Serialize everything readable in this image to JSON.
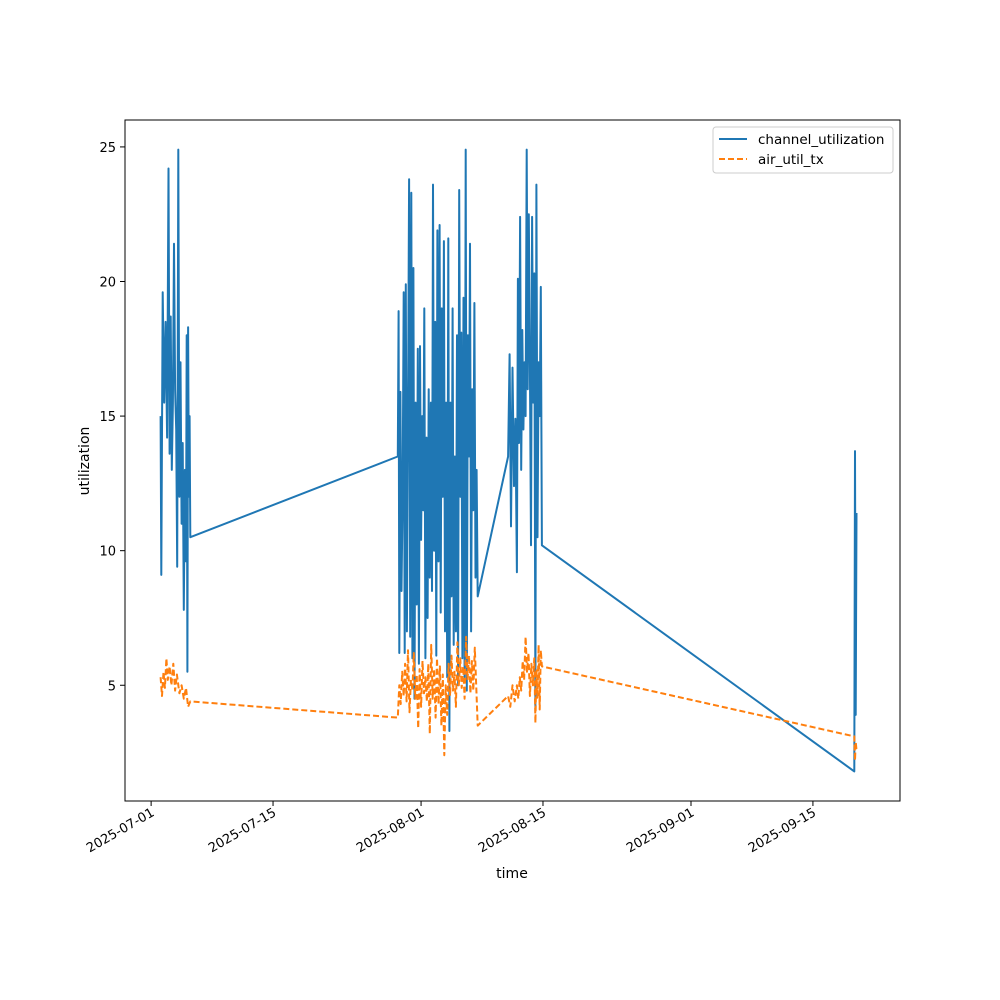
{
  "chart_data": {
    "type": "line",
    "title": "",
    "xlabel": "time",
    "ylabel": "utilization",
    "x_is_date": true,
    "xlim": [
      "2025-06-28",
      "2025-09-25"
    ],
    "ylim": [
      0.7,
      26.0
    ],
    "xticks": [
      "2025-07-01",
      "2025-07-15",
      "2025-08-01",
      "2025-08-15",
      "2025-09-01",
      "2025-09-15"
    ],
    "yticks": [
      5,
      10,
      15,
      20,
      25
    ],
    "grid": false,
    "legend_position": "top-right",
    "series": [
      {
        "name": "channel_utilization",
        "color": "#1f77b4",
        "style": "solid",
        "points": [
          [
            "2025-07-02 02:00",
            15.0
          ],
          [
            "2025-07-02 04:00",
            9.1
          ],
          [
            "2025-07-02 08:00",
            19.6
          ],
          [
            "2025-07-02 12:00",
            15.5
          ],
          [
            "2025-07-02 16:00",
            18.5
          ],
          [
            "2025-07-02 20:00",
            14.2
          ],
          [
            "2025-07-03 00:00",
            24.2
          ],
          [
            "2025-07-03 03:00",
            13.6
          ],
          [
            "2025-07-03 06:00",
            18.7
          ],
          [
            "2025-07-03 09:00",
            13.0
          ],
          [
            "2025-07-03 12:00",
            15.5
          ],
          [
            "2025-07-03 15:00",
            21.4
          ],
          [
            "2025-07-03 18:00",
            16.0
          ],
          [
            "2025-07-03 21:00",
            14.5
          ],
          [
            "2025-07-04 00:00",
            9.4
          ],
          [
            "2025-07-04 03:00",
            24.9
          ],
          [
            "2025-07-04 06:00",
            12.0
          ],
          [
            "2025-07-04 09:00",
            17.0
          ],
          [
            "2025-07-04 12:00",
            11.0
          ],
          [
            "2025-07-04 15:00",
            14.0
          ],
          [
            "2025-07-04 18:00",
            7.8
          ],
          [
            "2025-07-04 21:00",
            13.0
          ],
          [
            "2025-07-05 00:00",
            9.6
          ],
          [
            "2025-07-05 02:00",
            18.0
          ],
          [
            "2025-07-05 04:00",
            5.5
          ],
          [
            "2025-07-05 06:00",
            18.3
          ],
          [
            "2025-07-05 08:00",
            12.0
          ],
          [
            "2025-07-05 10:00",
            15.0
          ],
          [
            "2025-07-05 12:00",
            10.5
          ],
          [
            "2025-07-29 08:00",
            13.5
          ],
          [
            "2025-07-29 10:00",
            18.9
          ],
          [
            "2025-07-29 12:00",
            6.2
          ],
          [
            "2025-07-29 15:00",
            15.9
          ],
          [
            "2025-07-29 18:00",
            8.5
          ],
          [
            "2025-07-29 21:00",
            12.0
          ],
          [
            "2025-07-30 00:00",
            19.6
          ],
          [
            "2025-07-30 03:00",
            6.2
          ],
          [
            "2025-07-30 06:00",
            19.9
          ],
          [
            "2025-07-30 09:00",
            7.0
          ],
          [
            "2025-07-30 12:00",
            15.0
          ],
          [
            "2025-07-30 15:00",
            23.8
          ],
          [
            "2025-07-30 18:00",
            6.8
          ],
          [
            "2025-07-30 21:00",
            23.3
          ],
          [
            "2025-07-31 00:00",
            6.0
          ],
          [
            "2025-07-31 03:00",
            20.5
          ],
          [
            "2025-07-31 06:00",
            4.5
          ],
          [
            "2025-07-31 09:00",
            15.5
          ],
          [
            "2025-07-31 12:00",
            8.0
          ],
          [
            "2025-07-31 15:00",
            17.5
          ],
          [
            "2025-07-31 18:00",
            5.8
          ],
          [
            "2025-07-31 21:00",
            17.6
          ],
          [
            "2025-08-01 00:00",
            10.4
          ],
          [
            "2025-08-01 03:00",
            15.0
          ],
          [
            "2025-08-01 06:00",
            11.5
          ],
          [
            "2025-08-01 09:00",
            19.0
          ],
          [
            "2025-08-01 12:00",
            6.0
          ],
          [
            "2025-08-01 15:00",
            14.2
          ],
          [
            "2025-08-01 18:00",
            7.5
          ],
          [
            "2025-08-01 21:00",
            16.0
          ],
          [
            "2025-08-02 00:00",
            9.0
          ],
          [
            "2025-08-02 03:00",
            15.5
          ],
          [
            "2025-08-02 06:00",
            8.5
          ],
          [
            "2025-08-02 09:00",
            23.6
          ],
          [
            "2025-08-02 12:00",
            10.0
          ],
          [
            "2025-08-02 15:00",
            18.5
          ],
          [
            "2025-08-02 18:00",
            6.1
          ],
          [
            "2025-08-02 21:00",
            21.9
          ],
          [
            "2025-08-03 00:00",
            9.6
          ],
          [
            "2025-08-03 03:00",
            22.1
          ],
          [
            "2025-08-03 06:00",
            7.7
          ],
          [
            "2025-08-03 09:00",
            19.0
          ],
          [
            "2025-08-03 12:00",
            12.0
          ],
          [
            "2025-08-03 15:00",
            21.5
          ],
          [
            "2025-08-03 18:00",
            7.0
          ],
          [
            "2025-08-03 21:00",
            15.5
          ],
          [
            "2025-08-04 00:00",
            5.3
          ],
          [
            "2025-08-04 03:00",
            21.6
          ],
          [
            "2025-08-04 06:00",
            3.3
          ],
          [
            "2025-08-04 09:00",
            15.5
          ],
          [
            "2025-08-04 12:00",
            8.3
          ],
          [
            "2025-08-04 15:00",
            19.0
          ],
          [
            "2025-08-04 18:00",
            6.5
          ],
          [
            "2025-08-04 21:00",
            13.5
          ],
          [
            "2025-08-05 00:00",
            7.0
          ],
          [
            "2025-08-05 03:00",
            18.0
          ],
          [
            "2025-08-05 06:00",
            5.0
          ],
          [
            "2025-08-05 09:00",
            23.4
          ],
          [
            "2025-08-05 12:00",
            12.0
          ],
          [
            "2025-08-05 15:00",
            18.1
          ],
          [
            "2025-08-05 18:00",
            6.0
          ],
          [
            "2025-08-05 21:00",
            19.4
          ],
          [
            "2025-08-06 00:00",
            5.3
          ],
          [
            "2025-08-06 03:00",
            24.9
          ],
          [
            "2025-08-06 06:00",
            4.8
          ],
          [
            "2025-08-06 09:00",
            18.0
          ],
          [
            "2025-08-06 12:00",
            13.5
          ],
          [
            "2025-08-06 15:00",
            21.4
          ],
          [
            "2025-08-06 18:00",
            7.0
          ],
          [
            "2025-08-06 21:00",
            16.0
          ],
          [
            "2025-08-07 00:00",
            11.5
          ],
          [
            "2025-08-07 03:00",
            19.2
          ],
          [
            "2025-08-07 06:00",
            9.0
          ],
          [
            "2025-08-07 09:00",
            13.0
          ],
          [
            "2025-08-07 12:00",
            8.3
          ],
          [
            "2025-08-11 00:00",
            13.5
          ],
          [
            "2025-08-11 04:00",
            17.3
          ],
          [
            "2025-08-11 08:00",
            10.9
          ],
          [
            "2025-08-11 12:00",
            16.8
          ],
          [
            "2025-08-11 16:00",
            12.4
          ],
          [
            "2025-08-11 20:00",
            14.9
          ],
          [
            "2025-08-12 00:00",
            9.2
          ],
          [
            "2025-08-12 03:00",
            20.1
          ],
          [
            "2025-08-12 06:00",
            14.0
          ],
          [
            "2025-08-12 09:00",
            22.4
          ],
          [
            "2025-08-12 12:00",
            13.0
          ],
          [
            "2025-08-12 15:00",
            18.2
          ],
          [
            "2025-08-12 18:00",
            14.5
          ],
          [
            "2025-08-12 21:00",
            17.0
          ],
          [
            "2025-08-13 00:00",
            15.0
          ],
          [
            "2025-08-13 03:00",
            24.9
          ],
          [
            "2025-08-13 06:00",
            16.0
          ],
          [
            "2025-08-13 09:00",
            22.5
          ],
          [
            "2025-08-13 12:00",
            16.9
          ],
          [
            "2025-08-13 15:00",
            10.2
          ],
          [
            "2025-08-13 18:00",
            22.4
          ],
          [
            "2025-08-13 21:00",
            15.5
          ],
          [
            "2025-08-14 00:00",
            20.3
          ],
          [
            "2025-08-14 03:00",
            4.2
          ],
          [
            "2025-08-14 06:00",
            23.6
          ],
          [
            "2025-08-14 09:00",
            10.5
          ],
          [
            "2025-08-14 12:00",
            17.0
          ],
          [
            "2025-08-14 15:00",
            15.0
          ],
          [
            "2025-08-14 18:00",
            19.8
          ],
          [
            "2025-08-14 21:00",
            10.2
          ],
          [
            "2025-09-19 18:00",
            1.8
          ],
          [
            "2025-09-19 20:00",
            13.7
          ],
          [
            "2025-09-19 22:00",
            3.9
          ],
          [
            "2025-09-20 00:00",
            11.4
          ]
        ]
      },
      {
        "name": "air_util_tx",
        "color": "#ff7f0e",
        "style": "dashed",
        "points": [
          [
            "2025-07-02 02:00",
            5.3
          ],
          [
            "2025-07-02 06:00",
            4.6
          ],
          [
            "2025-07-02 10:00",
            5.5
          ],
          [
            "2025-07-02 14:00",
            4.9
          ],
          [
            "2025-07-02 18:00",
            6.0
          ],
          [
            "2025-07-02 22:00",
            5.2
          ],
          [
            "2025-07-03 03:00",
            5.7
          ],
          [
            "2025-07-03 08:00",
            5.0
          ],
          [
            "2025-07-03 13:00",
            5.8
          ],
          [
            "2025-07-03 18:00",
            4.8
          ],
          [
            "2025-07-03 23:00",
            5.4
          ],
          [
            "2025-07-04 06:00",
            4.7
          ],
          [
            "2025-07-04 12:00",
            5.0
          ],
          [
            "2025-07-04 18:00",
            4.5
          ],
          [
            "2025-07-05 00:00",
            4.9
          ],
          [
            "2025-07-05 06:00",
            4.2
          ],
          [
            "2025-07-05 12:00",
            4.4
          ],
          [
            "2025-07-29 08:00",
            3.8
          ],
          [
            "2025-07-29 12:00",
            5.0
          ],
          [
            "2025-07-29 16:00",
            4.3
          ],
          [
            "2025-07-29 20:00",
            5.5
          ],
          [
            "2025-07-30 00:00",
            4.6
          ],
          [
            "2025-07-30 04:00",
            5.8
          ],
          [
            "2025-07-30 08:00",
            4.4
          ],
          [
            "2025-07-30 12:00",
            6.3
          ],
          [
            "2025-07-30 16:00",
            4.0
          ],
          [
            "2025-07-30 20:00",
            5.2
          ],
          [
            "2025-07-31 00:00",
            4.8
          ],
          [
            "2025-07-31 04:00",
            6.2
          ],
          [
            "2025-07-31 08:00",
            4.5
          ],
          [
            "2025-07-31 12:00",
            5.4
          ],
          [
            "2025-07-31 16:00",
            3.4
          ],
          [
            "2025-07-31 20:00",
            5.6
          ],
          [
            "2025-08-01 00:00",
            4.2
          ],
          [
            "2025-08-01 04:00",
            5.9
          ],
          [
            "2025-08-01 08:00",
            4.7
          ],
          [
            "2025-08-01 12:00",
            5.3
          ],
          [
            "2025-08-01 16:00",
            4.4
          ],
          [
            "2025-08-01 20:00",
            5.8
          ],
          [
            "2025-08-02 00:00",
            3.2
          ],
          [
            "2025-08-02 04:00",
            6.5
          ],
          [
            "2025-08-02 08:00",
            4.5
          ],
          [
            "2025-08-02 12:00",
            5.6
          ],
          [
            "2025-08-02 16:00",
            3.8
          ],
          [
            "2025-08-02 20:00",
            6.0
          ],
          [
            "2025-08-03 00:00",
            4.3
          ],
          [
            "2025-08-03 04:00",
            5.7
          ],
          [
            "2025-08-03 08:00",
            3.5
          ],
          [
            "2025-08-03 12:00",
            5.4
          ],
          [
            "2025-08-03 16:00",
            2.4
          ],
          [
            "2025-08-03 20:00",
            5.0
          ],
          [
            "2025-08-04 00:00",
            3.9
          ],
          [
            "2025-08-04 04:00",
            5.8
          ],
          [
            "2025-08-04 08:00",
            4.6
          ],
          [
            "2025-08-04 12:00",
            6.1
          ],
          [
            "2025-08-04 16:00",
            4.8
          ],
          [
            "2025-08-04 20:00",
            5.5
          ],
          [
            "2025-08-05 00:00",
            4.2
          ],
          [
            "2025-08-05 04:00",
            6.6
          ],
          [
            "2025-08-05 08:00",
            5.0
          ],
          [
            "2025-08-05 12:00",
            6.0
          ],
          [
            "2025-08-05 16:00",
            4.9
          ],
          [
            "2025-08-05 20:00",
            5.7
          ],
          [
            "2025-08-06 00:00",
            4.5
          ],
          [
            "2025-08-06 04:00",
            6.8
          ],
          [
            "2025-08-06 08:00",
            5.2
          ],
          [
            "2025-08-06 12:00",
            6.1
          ],
          [
            "2025-08-06 16:00",
            4.7
          ],
          [
            "2025-08-06 20:00",
            5.9
          ],
          [
            "2025-08-07 00:00",
            4.8
          ],
          [
            "2025-08-07 04:00",
            6.4
          ],
          [
            "2025-08-07 08:00",
            5.0
          ],
          [
            "2025-08-07 12:00",
            3.5
          ],
          [
            "2025-08-11 00:00",
            4.6
          ],
          [
            "2025-08-11 06:00",
            4.2
          ],
          [
            "2025-08-11 12:00",
            5.0
          ],
          [
            "2025-08-11 18:00",
            4.4
          ],
          [
            "2025-08-12 00:00",
            5.0
          ],
          [
            "2025-08-12 04:00",
            4.5
          ],
          [
            "2025-08-12 08:00",
            5.3
          ],
          [
            "2025-08-12 12:00",
            4.8
          ],
          [
            "2025-08-12 16:00",
            5.9
          ],
          [
            "2025-08-12 20:00",
            5.2
          ],
          [
            "2025-08-13 00:00",
            6.8
          ],
          [
            "2025-08-13 04:00",
            5.5
          ],
          [
            "2025-08-13 08:00",
            6.2
          ],
          [
            "2025-08-13 12:00",
            4.6
          ],
          [
            "2025-08-13 16:00",
            5.8
          ],
          [
            "2025-08-13 20:00",
            5.0
          ],
          [
            "2025-08-14 00:00",
            6.0
          ],
          [
            "2025-08-14 03:00",
            3.6
          ],
          [
            "2025-08-14 06:00",
            5.6
          ],
          [
            "2025-08-14 09:00",
            4.5
          ],
          [
            "2025-08-14 12:00",
            6.5
          ],
          [
            "2025-08-14 15:00",
            4.1
          ],
          [
            "2025-08-14 18:00",
            6.3
          ],
          [
            "2025-08-14 21:00",
            5.7
          ],
          [
            "2025-09-19 18:00",
            3.1
          ],
          [
            "2025-09-19 20:00",
            2.2
          ],
          [
            "2025-09-19 22:00",
            2.9
          ],
          [
            "2025-09-20 00:00",
            2.6
          ]
        ]
      }
    ]
  }
}
